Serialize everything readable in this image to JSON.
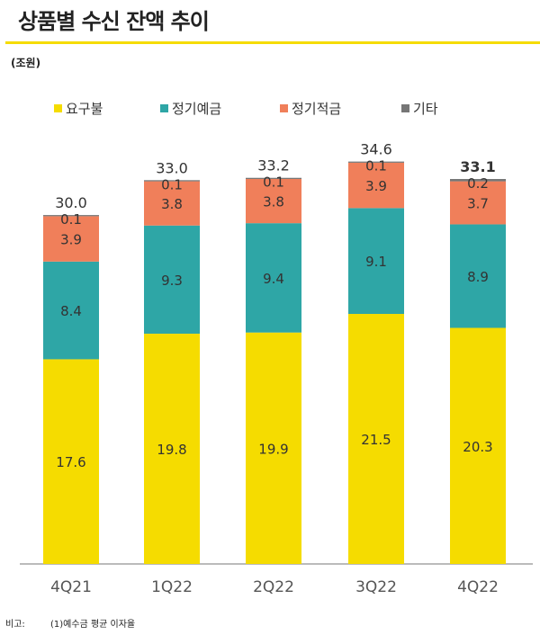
{
  "title": "상품별 수신 잔액 추이",
  "unit": "(조원)",
  "note_label": "비고:",
  "note_text": "(1)예수금 평균 이자율",
  "chart_data": {
    "type": "bar",
    "stacked": true,
    "categories": [
      "4Q21",
      "1Q22",
      "2Q22",
      "3Q22",
      "4Q22"
    ],
    "series": [
      {
        "name": "요구불",
        "color": "#F5DC00",
        "values": [
          17.6,
          19.8,
          19.9,
          21.5,
          20.3
        ]
      },
      {
        "name": "정기예금",
        "color": "#2EA6A6",
        "values": [
          8.4,
          9.3,
          9.4,
          9.1,
          8.9
        ]
      },
      {
        "name": "정기적금",
        "color": "#F07F5A",
        "values": [
          3.9,
          3.8,
          3.8,
          3.9,
          3.7
        ]
      },
      {
        "name": "기타",
        "color": "#767676",
        "values": [
          0.1,
          0.1,
          0.1,
          0.1,
          0.2
        ]
      }
    ],
    "totals": [
      "30.0",
      "33.0",
      "33.2",
      "34.6",
      "33.1"
    ],
    "highlight_total": "4Q22",
    "legend": "top",
    "grid": false
  }
}
